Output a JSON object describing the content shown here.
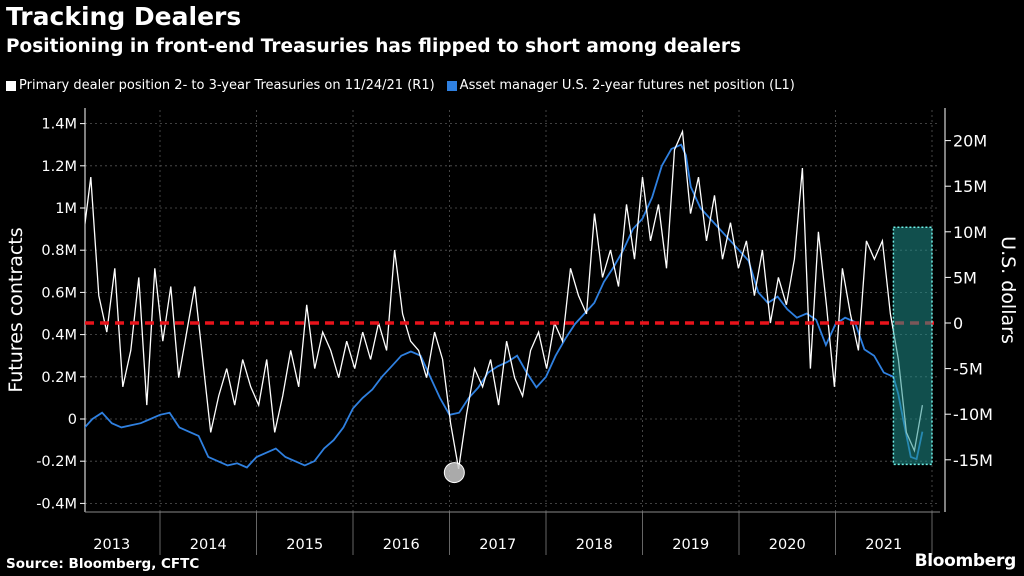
{
  "title": "Tracking Dealers",
  "subtitle": "Positioning in front-end Treasuries has flipped to short among dealers",
  "source": "Source: Bloomberg, CFTC",
  "brand": "Bloomberg",
  "chart_data": {
    "type": "line",
    "title": "Tracking Dealers",
    "ylabel_left": "Futures contracts",
    "ylabel_right": "U.S. dollars",
    "x_ticks": [
      "2013",
      "2014",
      "2015",
      "2016",
      "2017",
      "2018",
      "2019",
      "2020",
      "2021"
    ],
    "left_ticks": [
      "1.4M",
      "1.2M",
      "1M",
      "0.8M",
      "0.6M",
      "0.4M",
      "0.2M",
      "0",
      "-0.2M",
      "-0.4M"
    ],
    "left_tick_values": [
      1.4,
      1.2,
      1.0,
      0.8,
      0.6,
      0.4,
      0.2,
      0,
      -0.2,
      -0.4
    ],
    "right_ticks": [
      "20M",
      "15M",
      "10M",
      "5M",
      "0",
      "-5M",
      "-10M",
      "-15M"
    ],
    "right_tick_values": [
      20,
      15,
      10,
      5,
      0,
      -5,
      -10,
      -15
    ],
    "ylim_left": [
      -0.45,
      1.45
    ],
    "ylim_right": [
      -17,
      22
    ],
    "grid": true,
    "legend_position": "top-left",
    "colors": {
      "white_series": "#ffffff",
      "blue_series": "#2f80e0",
      "zero_line": "#e8131b",
      "highlight": "#1f8f8c",
      "marker": "#c8c8c8"
    },
    "series": [
      {
        "name": "Primary dealer position 2- to 3-year Treasuries on 11/24/21 (R1)",
        "axis": "right",
        "unit": "USD millions",
        "x_start": 2013.2,
        "x_end": 2021.9,
        "values": [
          9,
          16,
          3,
          -1,
          6,
          -7,
          -3,
          5,
          -9,
          6,
          -2,
          4,
          -6,
          -1,
          4,
          -4,
          -12,
          -8,
          -5,
          -9,
          -4,
          -7,
          -9,
          -4,
          -12,
          -8,
          -3,
          -7,
          2,
          -5,
          -1,
          -3,
          -6,
          -2,
          -5,
          -1,
          -4,
          0,
          -3,
          8,
          1,
          -2,
          -3,
          -6,
          -1,
          -4,
          -11,
          -16,
          -10,
          -5,
          -7,
          -4,
          -9,
          -2,
          -6,
          -8,
          -3,
          -1,
          -5,
          0,
          -2,
          6,
          3,
          1,
          12,
          5,
          8,
          4,
          13,
          7,
          16,
          9,
          13,
          6,
          19,
          21,
          12,
          16,
          9,
          14,
          7,
          11,
          6,
          9,
          3,
          8,
          0,
          5,
          2,
          7,
          17,
          -5,
          10,
          2,
          -7,
          6,
          1,
          -3,
          9,
          7,
          9,
          1,
          -4,
          -12,
          -14,
          -9
        ]
      },
      {
        "name": "Asset manager U.S. 2-year futures net position (L1)",
        "axis": "left",
        "unit": "contracts millions",
        "points": [
          [
            2013.2,
            -0.05
          ],
          [
            2013.3,
            0.0
          ],
          [
            2013.4,
            0.03
          ],
          [
            2013.5,
            -0.02
          ],
          [
            2013.6,
            -0.04
          ],
          [
            2013.7,
            -0.03
          ],
          [
            2013.8,
            -0.02
          ],
          [
            2013.9,
            0.0
          ],
          [
            2014.0,
            0.02
          ],
          [
            2014.1,
            0.03
          ],
          [
            2014.2,
            -0.04
          ],
          [
            2014.3,
            -0.06
          ],
          [
            2014.4,
            -0.08
          ],
          [
            2014.5,
            -0.18
          ],
          [
            2014.6,
            -0.2
          ],
          [
            2014.7,
            -0.22
          ],
          [
            2014.8,
            -0.21
          ],
          [
            2014.9,
            -0.23
          ],
          [
            2015.0,
            -0.18
          ],
          [
            2015.1,
            -0.16
          ],
          [
            2015.2,
            -0.14
          ],
          [
            2015.3,
            -0.18
          ],
          [
            2015.4,
            -0.2
          ],
          [
            2015.5,
            -0.22
          ],
          [
            2015.6,
            -0.2
          ],
          [
            2015.7,
            -0.14
          ],
          [
            2015.8,
            -0.1
          ],
          [
            2015.9,
            -0.04
          ],
          [
            2016.0,
            0.05
          ],
          [
            2016.1,
            0.1
          ],
          [
            2016.2,
            0.14
          ],
          [
            2016.3,
            0.2
          ],
          [
            2016.4,
            0.25
          ],
          [
            2016.5,
            0.3
          ],
          [
            2016.6,
            0.32
          ],
          [
            2016.7,
            0.3
          ],
          [
            2016.8,
            0.2
          ],
          [
            2016.9,
            0.1
          ],
          [
            2017.0,
            0.02
          ],
          [
            2017.1,
            0.03
          ],
          [
            2017.2,
            0.1
          ],
          [
            2017.3,
            0.15
          ],
          [
            2017.4,
            0.22
          ],
          [
            2017.5,
            0.25
          ],
          [
            2017.6,
            0.27
          ],
          [
            2017.7,
            0.3
          ],
          [
            2017.8,
            0.22
          ],
          [
            2017.9,
            0.15
          ],
          [
            2018.0,
            0.2
          ],
          [
            2018.1,
            0.3
          ],
          [
            2018.2,
            0.38
          ],
          [
            2018.3,
            0.45
          ],
          [
            2018.4,
            0.5
          ],
          [
            2018.5,
            0.55
          ],
          [
            2018.6,
            0.65
          ],
          [
            2018.7,
            0.72
          ],
          [
            2018.8,
            0.8
          ],
          [
            2018.9,
            0.9
          ],
          [
            2019.0,
            0.95
          ],
          [
            2019.1,
            1.05
          ],
          [
            2019.2,
            1.2
          ],
          [
            2019.3,
            1.28
          ],
          [
            2019.4,
            1.3
          ],
          [
            2019.45,
            1.25
          ],
          [
            2019.5,
            1.1
          ],
          [
            2019.6,
            1.0
          ],
          [
            2019.7,
            0.95
          ],
          [
            2019.8,
            0.9
          ],
          [
            2019.9,
            0.85
          ],
          [
            2020.0,
            0.8
          ],
          [
            2020.1,
            0.75
          ],
          [
            2020.2,
            0.6
          ],
          [
            2020.3,
            0.55
          ],
          [
            2020.4,
            0.58
          ],
          [
            2020.5,
            0.52
          ],
          [
            2020.6,
            0.48
          ],
          [
            2020.7,
            0.5
          ],
          [
            2020.8,
            0.47
          ],
          [
            2020.9,
            0.35
          ],
          [
            2021.0,
            0.45
          ],
          [
            2021.1,
            0.48
          ],
          [
            2021.2,
            0.46
          ],
          [
            2021.3,
            0.33
          ],
          [
            2021.4,
            0.3
          ],
          [
            2021.5,
            0.22
          ],
          [
            2021.6,
            0.2
          ],
          [
            2021.65,
            0.12
          ],
          [
            2021.7,
            0.0
          ],
          [
            2021.78,
            -0.18
          ],
          [
            2021.84,
            -0.19
          ],
          [
            2021.9,
            -0.06
          ]
        ]
      }
    ],
    "annotations": {
      "zero_line_value_right": 0,
      "marker_point": [
        2017.05,
        -16.4
      ],
      "highlight_range_x": [
        2021.6,
        2022.0
      ],
      "highlight_range_right": [
        -15.5,
        10.5
      ]
    }
  }
}
